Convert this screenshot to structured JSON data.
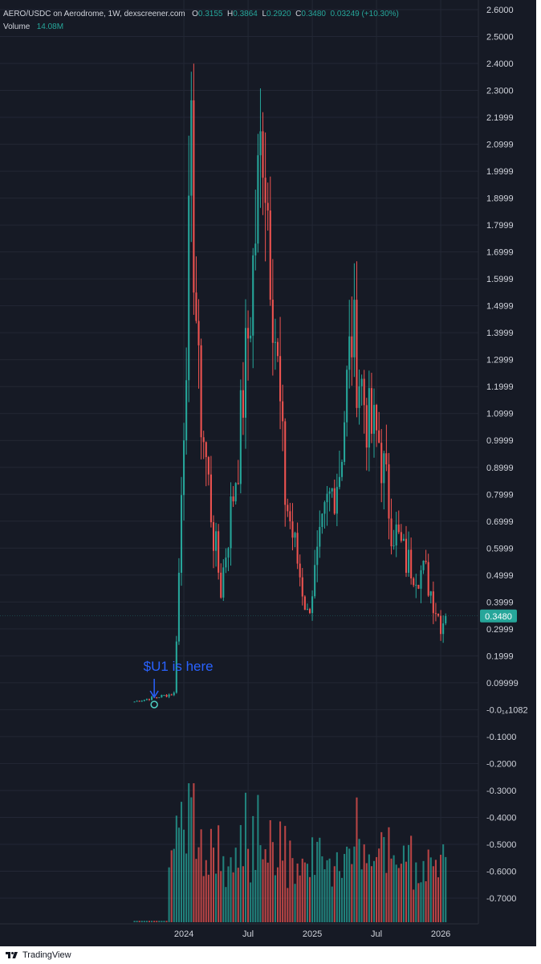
{
  "legend": {
    "symbol": "AERO/USDC on Aerodrome, 1W, dexscreener.com",
    "open_label": "O",
    "open": "0.3155",
    "high_label": "H",
    "high": "0.3864",
    "low_label": "L",
    "low": "0.2920",
    "close_label": "C",
    "close": "0.3480",
    "change": "0.03249 (+10.30%)",
    "volume_label": "Volume",
    "volume": "14.08M"
  },
  "last_price": "0.3480",
  "annotation": {
    "text": "$U1 is here"
  },
  "brand": "TradingView",
  "colors": {
    "background": "#161a25",
    "up": "#26a69a",
    "down": "#ef5350",
    "annotation": "#2962ff",
    "price_tag": "#26a69a",
    "grid": "#232735",
    "text": "#d1d4dc"
  },
  "chart_data": {
    "type": "candlestick",
    "y_tick_labels": [
      "2.6000",
      "2.5000",
      "2.4000",
      "2.3000",
      "2.1999",
      "2.0999",
      "1.9999",
      "1.8999",
      "1.7999",
      "1.6999",
      "1.5999",
      "1.4999",
      "1.3999",
      "1.2999",
      "1.1999",
      "1.0999",
      "0.9999",
      "0.8999",
      "0.7999",
      "0.6999",
      "0.5999",
      "0.4999",
      "0.3999",
      "0.2999",
      "0.1999",
      "0.09999",
      "-0.0₁₄1082",
      "-0.1000",
      "-0.2000",
      "-0.3000",
      "-0.4000",
      "-0.5000",
      "-0.6000",
      "-0.7000"
    ],
    "x_tick_labels": [
      "2024",
      "Jul",
      "2025",
      "Jul",
      "2026"
    ],
    "x_tick_positions": [
      20,
      46,
      72,
      98,
      124
    ],
    "ylim": [
      -0.75,
      2.62
    ],
    "bar_count": 130,
    "candles_week_start": 0,
    "last_close": 0.348,
    "key_levels": [
      {
        "week": 0,
        "close": 0.03
      },
      {
        "week": 16,
        "close": 0.06
      },
      {
        "week": 18,
        "close": 0.5
      },
      {
        "week": 23,
        "close": 2.0
      },
      {
        "week": 26,
        "close": 1.2
      },
      {
        "week": 32,
        "close": 0.65
      },
      {
        "week": 35,
        "close": 0.45
      },
      {
        "week": 42,
        "close": 0.95
      },
      {
        "week": 47,
        "close": 1.5
      },
      {
        "week": 52,
        "close": 2.2
      },
      {
        "week": 57,
        "close": 1.4
      },
      {
        "week": 61,
        "close": 0.8
      },
      {
        "week": 68,
        "close": 0.45
      },
      {
        "week": 70,
        "close": 0.35
      },
      {
        "week": 78,
        "close": 0.75
      },
      {
        "week": 83,
        "close": 0.9
      },
      {
        "week": 88,
        "close": 1.4
      },
      {
        "week": 95,
        "close": 1.05
      },
      {
        "week": 99,
        "close": 1.0
      },
      {
        "week": 104,
        "close": 0.7
      },
      {
        "week": 110,
        "close": 0.55
      },
      {
        "week": 118,
        "close": 0.5
      },
      {
        "week": 124,
        "close": 0.32
      },
      {
        "week": 126,
        "close": 0.348
      }
    ]
  }
}
